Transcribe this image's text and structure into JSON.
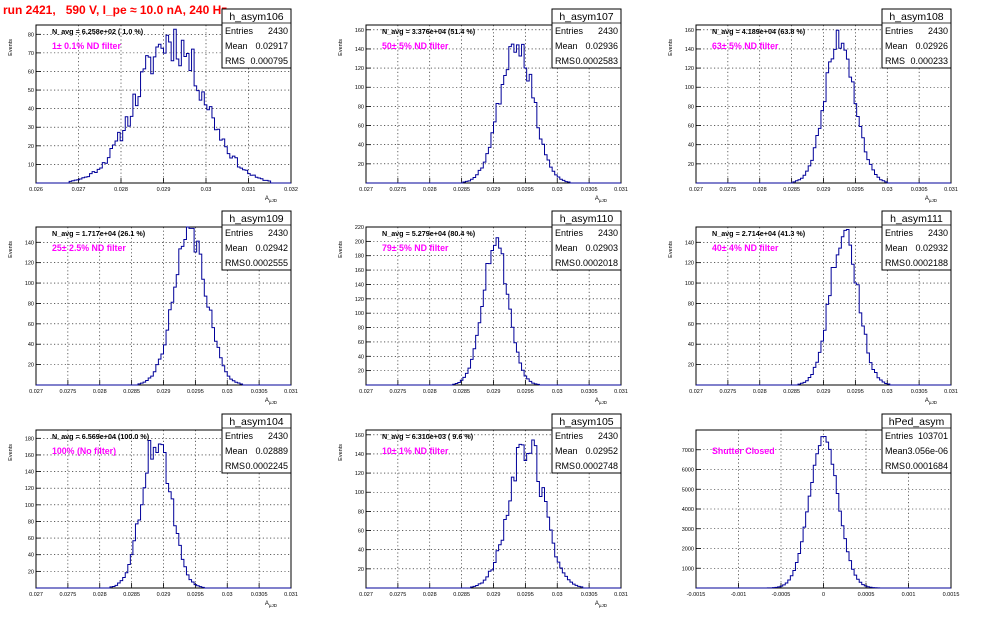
{
  "canvas_title": "run 2421,   590 V, I_pe ≈ 10.0 nA, 240 Hz",
  "colors": {
    "title": "#ff0000",
    "histogram": "#000099",
    "filter_label": "#ff00ff",
    "grid": "#000000"
  },
  "stat_labels": {
    "entries": "Entries",
    "mean": "Mean",
    "rms": "RMS"
  },
  "chart_data": [
    {
      "type": "histogram",
      "name": "h_asym106",
      "navg": "N_avg = 6.258e+02 ( 1.0 %)",
      "filter": "1± 0.1% ND filter",
      "ylabel": "Events",
      "xlabel": "A",
      "xlabel_sub": "μJD",
      "entries": "2430",
      "mean": "0.02917",
      "rms": "0.000795",
      "xlim": [
        0.026,
        0.032
      ],
      "ylim": [
        0,
        85
      ],
      "xticks": [
        0.026,
        0.027,
        0.028,
        0.029,
        0.03,
        0.031,
        0.032
      ],
      "xtick_labels": [
        "0.026",
        "0.027",
        "0.028",
        "0.029",
        "0.03",
        "0.031",
        "0.032"
      ],
      "yticks": [
        10,
        20,
        30,
        40,
        50,
        60,
        70,
        80
      ],
      "shape": {
        "mean": 0.02917,
        "sigma": 0.000795,
        "peak": 77,
        "bins": 100,
        "seed": 11,
        "noise": 0.16
      }
    },
    {
      "type": "histogram",
      "name": "h_asym107",
      "navg": "N_avg = 3.376e+04 (51.4 %)",
      "filter": "50± 5% ND filter",
      "ylabel": "Events",
      "xlabel": "A",
      "xlabel_sub": "μJD",
      "entries": "2430",
      "mean": "0.02936",
      "rms": "0.0002583",
      "xlim": [
        0.027,
        0.031
      ],
      "ylim": [
        0,
        165
      ],
      "xticks": [
        0.027,
        0.0275,
        0.028,
        0.0285,
        0.029,
        0.0295,
        0.03,
        0.0305,
        0.031
      ],
      "xtick_labels": [
        "0.027",
        "0.0275",
        "0.028",
        "0.0285",
        "0.029",
        "0.0295",
        "0.03",
        "0.0305",
        "0.031"
      ],
      "yticks": [
        20,
        40,
        60,
        80,
        100,
        120,
        140,
        160
      ],
      "shape": {
        "mean": 0.02936,
        "sigma": 0.0002583,
        "peak": 150,
        "bins": 100,
        "seed": 23,
        "noise": 0.1
      }
    },
    {
      "type": "histogram",
      "name": "h_asym108",
      "navg": "N_avg = 4.189e+04 (63.8 %)",
      "filter": "63± 5% ND filter",
      "ylabel": "Events",
      "xlabel": "A",
      "xlabel_sub": "μJD",
      "entries": "2430",
      "mean": "0.02926",
      "rms": "0.000233",
      "xlim": [
        0.027,
        0.031
      ],
      "ylim": [
        0,
        165
      ],
      "xticks": [
        0.027,
        0.0275,
        0.028,
        0.0285,
        0.029,
        0.0295,
        0.03,
        0.0305,
        0.031
      ],
      "xtick_labels": [
        "0.027",
        "0.0275",
        "0.028",
        "0.0285",
        "0.029",
        "0.0295",
        "0.03",
        "0.0305",
        "0.031"
      ],
      "yticks": [
        20,
        40,
        60,
        80,
        100,
        120,
        140,
        160
      ],
      "shape": {
        "mean": 0.02926,
        "sigma": 0.000233,
        "peak": 152,
        "bins": 100,
        "seed": 37,
        "noise": 0.1
      }
    },
    {
      "type": "histogram",
      "name": "h_asym109",
      "navg": "N_avg = 1.717e+04 (26.1 %)",
      "filter": "25± 2.5% ND filter",
      "ylabel": "Events",
      "xlabel": "A",
      "xlabel_sub": "μJD",
      "entries": "2430",
      "mean": "0.02942",
      "rms": "0.0002555",
      "xlim": [
        0.027,
        0.031
      ],
      "ylim": [
        0,
        155
      ],
      "xticks": [
        0.027,
        0.0275,
        0.028,
        0.0285,
        0.029,
        0.0295,
        0.03,
        0.0305,
        0.031
      ],
      "xtick_labels": [
        "0.027",
        "0.0275",
        "0.028",
        "0.0285",
        "0.029",
        "0.0295",
        "0.03",
        "0.0305",
        "0.031"
      ],
      "yticks": [
        20,
        40,
        60,
        80,
        100,
        120,
        140
      ],
      "shape": {
        "mean": 0.02942,
        "sigma": 0.0002555,
        "peak": 148,
        "bins": 100,
        "seed": 41,
        "noise": 0.1
      }
    },
    {
      "type": "histogram",
      "name": "h_asym110",
      "navg": "N_avg = 5.279e+04 (80.4 %)",
      "filter": "79± 5% ND filter",
      "ylabel": "Events",
      "xlabel": "A",
      "xlabel_sub": "μJD",
      "entries": "2430",
      "mean": "0.02903",
      "rms": "0.0002018",
      "xlim": [
        0.027,
        0.031
      ],
      "ylim": [
        0,
        220
      ],
      "xticks": [
        0.027,
        0.0275,
        0.028,
        0.0285,
        0.029,
        0.0295,
        0.03,
        0.0305,
        0.031
      ],
      "xtick_labels": [
        "0.027",
        "0.0275",
        "0.028",
        "0.0285",
        "0.029",
        "0.0295",
        "0.03",
        "0.0305",
        "0.031"
      ],
      "yticks": [
        20,
        40,
        60,
        80,
        100,
        120,
        140,
        160,
        180,
        200,
        220
      ],
      "shape": {
        "mean": 0.02903,
        "sigma": 0.0002018,
        "peak": 200,
        "bins": 100,
        "seed": 53,
        "noise": 0.08
      }
    },
    {
      "type": "histogram",
      "name": "h_asym111",
      "navg": "N_avg = 2.714e+04 (41.3 %)",
      "filter": "40± 4% ND filter",
      "ylabel": "Events",
      "xlabel": "A",
      "xlabel_sub": "μJD",
      "entries": "2430",
      "mean": "0.02932",
      "rms": "0.0002188",
      "xlim": [
        0.027,
        0.031
      ],
      "ylim": [
        0,
        155
      ],
      "xticks": [
        0.027,
        0.0275,
        0.028,
        0.0285,
        0.029,
        0.0295,
        0.03,
        0.0305,
        0.031
      ],
      "xtick_labels": [
        "0.027",
        "0.0275",
        "0.028",
        "0.0285",
        "0.029",
        "0.0295",
        "0.03",
        "0.0305",
        "0.031"
      ],
      "yticks": [
        20,
        40,
        60,
        80,
        100,
        120,
        140
      ],
      "shape": {
        "mean": 0.02932,
        "sigma": 0.0002188,
        "peak": 152,
        "bins": 100,
        "seed": 67,
        "noise": 0.1
      }
    },
    {
      "type": "histogram",
      "name": "h_asym104",
      "navg": "N_avg = 6.569e+04 (100.0 %)",
      "filter": "100% (No filter)",
      "ylabel": "Events",
      "xlabel": "A",
      "xlabel_sub": "μJD",
      "entries": "2430",
      "mean": "0.02889",
      "rms": "0.0002245",
      "xlim": [
        0.027,
        0.031
      ],
      "ylim": [
        0,
        190
      ],
      "xticks": [
        0.027,
        0.0275,
        0.028,
        0.0285,
        0.029,
        0.0295,
        0.03,
        0.0305,
        0.031
      ],
      "xtick_labels": [
        "0.027",
        "0.0275",
        "0.028",
        "0.0285",
        "0.029",
        "0.0295",
        "0.03",
        "0.0305",
        "0.031"
      ],
      "yticks": [
        20,
        40,
        60,
        80,
        100,
        120,
        140,
        160,
        180
      ],
      "shape": {
        "mean": 0.02889,
        "sigma": 0.0002245,
        "peak": 180,
        "bins": 100,
        "seed": 71,
        "noise": 0.12
      }
    },
    {
      "type": "histogram",
      "name": "h_asym105",
      "navg": "N_avg = 6.310e+03 ( 9.6 %)",
      "filter": "10± 1% ND filter",
      "ylabel": "Events",
      "xlabel": "A",
      "xlabel_sub": "μJD",
      "entries": "2430",
      "mean": "0.02952",
      "rms": "0.0002748",
      "xlim": [
        0.027,
        0.031
      ],
      "ylim": [
        0,
        165
      ],
      "xticks": [
        0.027,
        0.0275,
        0.028,
        0.0285,
        0.029,
        0.0295,
        0.03,
        0.0305,
        0.031
      ],
      "xtick_labels": [
        "0.027",
        "0.0275",
        "0.028",
        "0.0285",
        "0.029",
        "0.0295",
        "0.03",
        "0.0305",
        "0.031"
      ],
      "yticks": [
        20,
        40,
        60,
        80,
        100,
        120,
        140,
        160
      ],
      "shape": {
        "mean": 0.02952,
        "sigma": 0.0002748,
        "peak": 150,
        "bins": 100,
        "seed": 89,
        "noise": 0.14
      }
    },
    {
      "type": "histogram",
      "name": "hPed_asym",
      "navg": "",
      "filter": "Shutter Closed",
      "ylabel": "",
      "xlabel": "",
      "xlabel_sub": "",
      "entries": "103701",
      "mean": "3.056e-06",
      "rms": "0.0001684",
      "xlim": [
        -0.0015,
        0.0015
      ],
      "ylim": [
        0,
        8000
      ],
      "xticks": [
        -0.0015,
        -0.001,
        -0.0005,
        0,
        0.0005,
        0.001,
        0.0015
      ],
      "xtick_labels": [
        "-0.0015",
        "-0.001",
        "-0.0005",
        "0",
        "0.0005",
        "0.001",
        "0.0015"
      ],
      "yticks": [
        1000,
        2000,
        3000,
        4000,
        5000,
        6000,
        7000
      ],
      "shape": {
        "mean": 3e-06,
        "sigma": 0.0001684,
        "peak": 7600,
        "bins": 100,
        "seed": 97,
        "noise": 0.02
      }
    }
  ]
}
